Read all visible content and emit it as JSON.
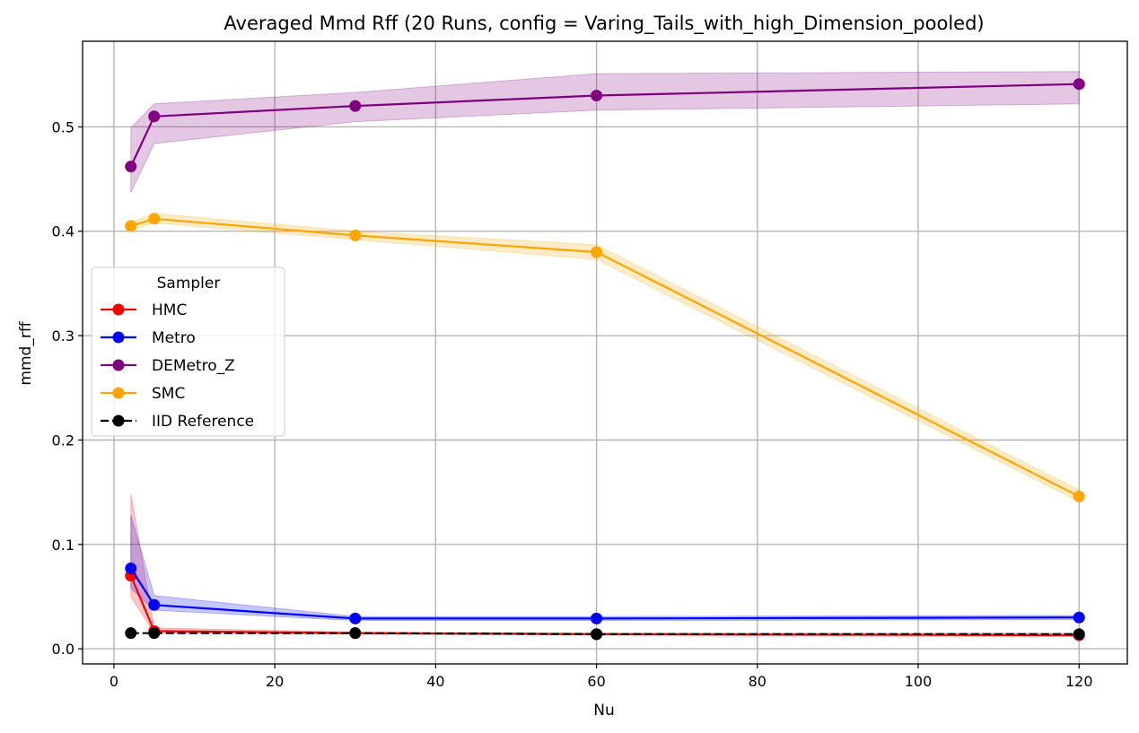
{
  "chart_data": {
    "type": "line",
    "title": "Averaged Mmd Rff (20 Runs, config = Varing_Tails_with_high_Dimension_pooled)",
    "xlabel": "Nu",
    "ylabel": "mmd_rff",
    "xlim": [
      -3.9,
      126
    ],
    "ylim": [
      -0.0145,
      0.582
    ],
    "xticks": [
      0,
      20,
      40,
      60,
      80,
      100,
      120
    ],
    "xtick_labels": [
      "0",
      "20",
      "40",
      "60",
      "80",
      "100",
      "120"
    ],
    "yticks": [
      0.0,
      0.1,
      0.2,
      0.3,
      0.4,
      0.5
    ],
    "ytick_labels": [
      "0.0",
      "0.1",
      "0.2",
      "0.3",
      "0.4",
      "0.5"
    ],
    "grid": true,
    "legend": {
      "title": "Sampler",
      "placement": "center-left"
    },
    "x": [
      2.1,
      5,
      30,
      60,
      120
    ],
    "series": [
      {
        "name": "HMC",
        "color": "#ff0000",
        "style": "solid",
        "values": [
          0.07,
          0.017,
          0.015,
          0.014,
          0.013
        ],
        "lower": [
          0.05,
          0.015,
          0.014,
          0.013,
          0.012
        ],
        "upper": [
          0.148,
          0.02,
          0.016,
          0.015,
          0.015
        ]
      },
      {
        "name": "Metro",
        "color": "#0000ff",
        "style": "solid",
        "values": [
          0.077,
          0.042,
          0.029,
          0.029,
          0.03
        ],
        "lower": [
          0.058,
          0.037,
          0.027,
          0.027,
          0.028
        ],
        "upper": [
          0.128,
          0.051,
          0.031,
          0.031,
          0.032
        ]
      },
      {
        "name": "DEMetro_Z",
        "color": "#800080",
        "style": "solid",
        "values": [
          0.462,
          0.51,
          0.52,
          0.53,
          0.541
        ],
        "lower": [
          0.437,
          0.484,
          0.505,
          0.516,
          0.522
        ],
        "upper": [
          0.499,
          0.522,
          0.533,
          0.551,
          0.553
        ]
      },
      {
        "name": "SMC",
        "color": "#ffa500",
        "style": "solid",
        "values": [
          0.405,
          0.412,
          0.396,
          0.38,
          0.146
        ],
        "lower": [
          0.401,
          0.408,
          0.392,
          0.373,
          0.141
        ],
        "upper": [
          0.409,
          0.417,
          0.4,
          0.387,
          0.152
        ]
      },
      {
        "name": "IID Reference",
        "color": "#000000",
        "style": "dashed",
        "values": [
          0.015,
          0.015,
          0.015,
          0.014,
          0.014
        ]
      }
    ]
  }
}
